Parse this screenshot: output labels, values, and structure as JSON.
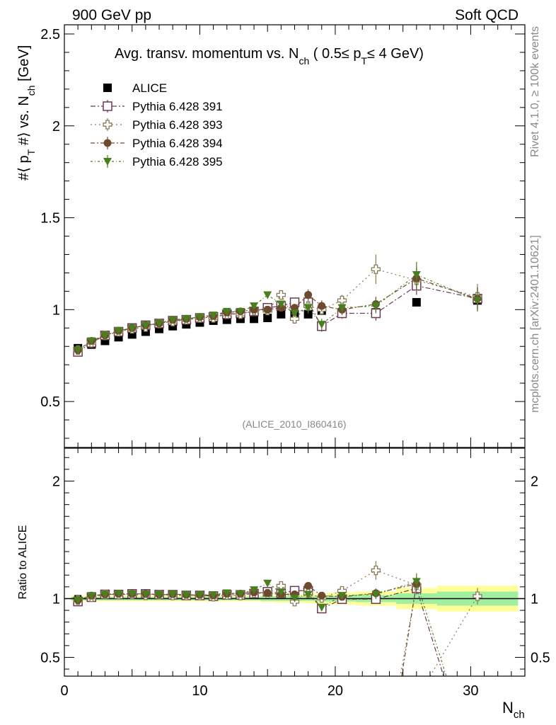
{
  "header": {
    "left": "900 GeV pp",
    "right": "Soft QCD"
  },
  "side_text": {
    "rivet": "Rivet 4.1.0, ≥ 100k events",
    "mcplots": "mcplots.cern.ch [arXiv:2401.10621]"
  },
  "watermark": "(ALICE_2010_I860416)",
  "colors": {
    "alice": "#000000",
    "p391": "#6b3a54",
    "p393": "#8a7a55",
    "p394": "#6e4a2e",
    "p395": "#4a7f1e",
    "band_inner": "#a0f0a0",
    "band_outer": "#ffff99"
  },
  "chart_data": [
    {
      "type": "scatter",
      "panel": "main",
      "title_parts": {
        "prefix": "Avg. transv. momentum vs. N",
        "sub1": "ch",
        "middle": " ( 0.5≤ p",
        "sub2": "T",
        "suffix": "≤ 4 GeV)"
      },
      "ylabel_parts": {
        "a": "#⟨ p",
        "sub_a": "T",
        "b": " #⟩ vs. N",
        "sub_b": "ch",
        "c": " [GeV]"
      },
      "xlim": [
        0,
        34
      ],
      "ylim": [
        0.25,
        2.55
      ],
      "yticks": [
        0.5,
        1,
        1.5,
        2,
        2.5
      ],
      "ytick_labels": [
        "0.5",
        "1",
        "1.5",
        "2",
        "2.5"
      ],
      "legend_position": "top-left",
      "series": [
        {
          "name": "ALICE",
          "key": "alice",
          "marker": "square-filled",
          "x": [
            1,
            2,
            3,
            4,
            5,
            6,
            7,
            8,
            9,
            10,
            11,
            12,
            13,
            14,
            15,
            16,
            17,
            18,
            19,
            20.5,
            23,
            26,
            30.5
          ],
          "y": [
            0.79,
            0.81,
            0.83,
            0.85,
            0.865,
            0.88,
            0.895,
            0.91,
            0.92,
            0.93,
            0.94,
            0.945,
            0.95,
            0.95,
            0.955,
            0.975,
            0.975,
            0.975,
            0.995,
            0.985,
            0.985,
            1.04,
            1.05
          ],
          "err": [
            0.01,
            0.01,
            0.01,
            0.01,
            0.01,
            0.01,
            0.01,
            0.01,
            0.01,
            0.01,
            0.01,
            0.01,
            0.01,
            0.01,
            0.01,
            0.01,
            0.01,
            0.01,
            0.015,
            0.015,
            0.015,
            0.015,
            0.02
          ]
        },
        {
          "name": "Pythia 6.428 391",
          "key": "p391",
          "marker": "square-open",
          "x": [
            1,
            2,
            3,
            4,
            5,
            6,
            7,
            8,
            9,
            10,
            11,
            12,
            13,
            14,
            15,
            16,
            17,
            18,
            19,
            20.5,
            23,
            26,
            30.5
          ],
          "y": [
            0.77,
            0.82,
            0.86,
            0.88,
            0.9,
            0.915,
            0.925,
            0.94,
            0.945,
            0.955,
            0.96,
            0.975,
            0.98,
            0.99,
            1.01,
            1.02,
            1.04,
            1.04,
            0.91,
            0.98,
            0.98,
            1.13,
            1.06
          ],
          "err": [
            0.01,
            0.01,
            0.01,
            0.01,
            0.01,
            0.01,
            0.01,
            0.01,
            0.01,
            0.01,
            0.01,
            0.01,
            0.01,
            0.01,
            0.02,
            0.02,
            0.02,
            0.03,
            0.03,
            0.03,
            0.04,
            0.05,
            0.06
          ]
        },
        {
          "name": "Pythia 6.428 393",
          "key": "p393",
          "marker": "cross-open",
          "x": [
            1,
            2,
            3,
            4,
            5,
            6,
            7,
            8,
            9,
            10,
            11,
            12,
            13,
            14,
            15,
            16,
            17,
            18,
            19,
            20.5,
            23,
            26,
            30.5
          ],
          "y": [
            0.78,
            0.82,
            0.86,
            0.88,
            0.895,
            0.905,
            0.925,
            0.935,
            0.945,
            0.955,
            0.955,
            0.975,
            0.975,
            0.995,
            0.995,
            1.08,
            0.95,
            1.02,
            1.0,
            1.05,
            1.22,
            1.16,
            1.07
          ],
          "err": [
            0.01,
            0.01,
            0.01,
            0.01,
            0.01,
            0.01,
            0.01,
            0.01,
            0.01,
            0.01,
            0.01,
            0.01,
            0.01,
            0.01,
            0.02,
            0.02,
            0.02,
            0.03,
            0.03,
            0.03,
            0.08,
            0.06,
            0.07
          ]
        },
        {
          "name": "Pythia 6.428 394",
          "key": "p394",
          "marker": "circle-filled",
          "x": [
            1,
            2,
            3,
            4,
            5,
            6,
            7,
            8,
            9,
            10,
            11,
            12,
            13,
            14,
            15,
            16,
            17,
            18,
            19,
            20.5,
            23,
            26,
            30.5
          ],
          "y": [
            0.78,
            0.83,
            0.86,
            0.885,
            0.9,
            0.915,
            0.925,
            0.945,
            0.95,
            0.96,
            0.965,
            0.985,
            0.99,
            1.0,
            1.0,
            1.01,
            1.01,
            1.08,
            1.02,
            1.0,
            1.03,
            1.17,
            1.06
          ],
          "err": [
            0.01,
            0.01,
            0.01,
            0.01,
            0.01,
            0.01,
            0.01,
            0.01,
            0.01,
            0.01,
            0.01,
            0.01,
            0.01,
            0.01,
            0.02,
            0.02,
            0.02,
            0.03,
            0.03,
            0.03,
            0.04,
            0.06,
            0.06
          ]
        },
        {
          "name": "Pythia 6.428 395",
          "key": "p395",
          "marker": "triangle-down-filled",
          "x": [
            1,
            2,
            3,
            4,
            5,
            6,
            7,
            8,
            9,
            10,
            11,
            12,
            13,
            14,
            15,
            16,
            17,
            18,
            19,
            20.5,
            23,
            26,
            30.5
          ],
          "y": [
            0.78,
            0.83,
            0.86,
            0.885,
            0.9,
            0.915,
            0.925,
            0.945,
            0.95,
            0.96,
            0.97,
            0.99,
            0.99,
            1.02,
            1.08,
            1.03,
            0.98,
            1.01,
            0.92,
            1.01,
            1.02,
            1.19,
            1.05
          ],
          "err": [
            0.01,
            0.01,
            0.01,
            0.01,
            0.01,
            0.01,
            0.01,
            0.01,
            0.01,
            0.01,
            0.01,
            0.01,
            0.01,
            0.01,
            0.02,
            0.02,
            0.02,
            0.03,
            0.03,
            0.03,
            0.04,
            0.07,
            0.06
          ]
        }
      ]
    },
    {
      "type": "scatter",
      "panel": "ratio",
      "ylabel": "Ratio to ALICE",
      "xlabel": "N",
      "xlabel_sub": "ch",
      "xlim": [
        0,
        34
      ],
      "ylim": [
        0.34,
        2.28
      ],
      "xticks": [
        0,
        10,
        20,
        30
      ],
      "xtick_labels": [
        "0",
        "10",
        "20",
        "30"
      ],
      "yticks": [
        0.5,
        1,
        2
      ],
      "ytick_labels": [
        "0.5",
        "1",
        "2"
      ],
      "band_bins": [
        [
          0.5,
          1.5
        ],
        [
          1.5,
          2.5
        ],
        [
          2.5,
          3.5
        ],
        [
          3.5,
          4.5
        ],
        [
          4.5,
          5.5
        ],
        [
          5.5,
          6.5
        ],
        [
          6.5,
          7.5
        ],
        [
          7.5,
          8.5
        ],
        [
          8.5,
          9.5
        ],
        [
          9.5,
          10.5
        ],
        [
          10.5,
          11.5
        ],
        [
          11.5,
          12.5
        ],
        [
          12.5,
          13.5
        ],
        [
          13.5,
          14.5
        ],
        [
          14.5,
          15.5
        ],
        [
          15.5,
          16.5
        ],
        [
          16.5,
          17.5
        ],
        [
          17.5,
          18.5
        ],
        [
          18.5,
          19.5
        ],
        [
          19.5,
          21.5
        ],
        [
          21.5,
          24.5
        ],
        [
          24.5,
          27.5
        ],
        [
          27.5,
          33.5
        ]
      ],
      "band_inner": [
        0.015,
        0.015,
        0.015,
        0.015,
        0.015,
        0.015,
        0.015,
        0.015,
        0.015,
        0.015,
        0.015,
        0.015,
        0.015,
        0.015,
        0.02,
        0.02,
        0.02,
        0.02,
        0.025,
        0.025,
        0.03,
        0.045,
        0.06
      ],
      "band_outer": [
        0.025,
        0.025,
        0.025,
        0.025,
        0.025,
        0.025,
        0.025,
        0.025,
        0.025,
        0.025,
        0.025,
        0.025,
        0.025,
        0.025,
        0.03,
        0.035,
        0.035,
        0.04,
        0.045,
        0.05,
        0.06,
        0.09,
        0.11
      ],
      "series": [
        {
          "name": "Pythia 6.428 391",
          "key": "p391",
          "marker": "square-open",
          "x": [
            1,
            2,
            3,
            4,
            5,
            6,
            7,
            8,
            9,
            10,
            11,
            12,
            13,
            14,
            15,
            16,
            17,
            18,
            19,
            20.5,
            23,
            26,
            30.5
          ],
          "y": [
            0.975,
            1.012,
            1.036,
            1.035,
            1.04,
            1.04,
            1.034,
            1.033,
            1.027,
            1.027,
            1.021,
            1.032,
            1.032,
            1.042,
            1.058,
            1.046,
            1.067,
            1.067,
            0.915,
            0.995,
            0.995,
            1.087,
            1.01
          ],
          "err": [
            0.01,
            0.01,
            0.01,
            0.01,
            0.01,
            0.01,
            0.01,
            0.01,
            0.01,
            0.01,
            0.01,
            0.01,
            0.01,
            0.01,
            0.02,
            0.02,
            0.02,
            0.03,
            0.03,
            0.03,
            0.04,
            0.05,
            0.06
          ],
          "tail_to": [
            28.0,
            0.34
          ]
        },
        {
          "name": "Pythia 6.428 393",
          "key": "p393",
          "marker": "cross-open",
          "x": [
            1,
            2,
            3,
            4,
            5,
            6,
            7,
            8,
            9,
            10,
            11,
            12,
            13,
            14,
            15,
            16,
            17,
            18,
            19,
            20.5,
            23,
            26,
            30.5
          ],
          "y": [
            0.987,
            1.012,
            1.036,
            1.035,
            1.035,
            1.028,
            1.034,
            1.027,
            1.027,
            1.027,
            1.016,
            1.032,
            1.026,
            1.047,
            1.042,
            1.108,
            0.974,
            1.046,
            1.005,
            1.066,
            1.24,
            1.115,
            1.02
          ],
          "err": [
            0.01,
            0.01,
            0.01,
            0.01,
            0.01,
            0.01,
            0.01,
            0.01,
            0.01,
            0.01,
            0.01,
            0.01,
            0.01,
            0.01,
            0.02,
            0.02,
            0.02,
            0.03,
            0.03,
            0.03,
            0.08,
            0.06,
            0.07
          ],
          "tail_to": [
            24.8,
            0.34
          ]
        },
        {
          "name": "Pythia 6.428 394",
          "key": "p394",
          "marker": "circle-filled",
          "x": [
            1,
            2,
            3,
            4,
            5,
            6,
            7,
            8,
            9,
            10,
            11,
            12,
            13,
            14,
            15,
            16,
            17,
            18,
            19,
            20.5,
            23,
            26,
            30.5
          ],
          "y": [
            0.987,
            1.025,
            1.036,
            1.041,
            1.04,
            1.04,
            1.034,
            1.038,
            1.033,
            1.032,
            1.027,
            1.042,
            1.042,
            1.053,
            1.047,
            1.036,
            1.036,
            1.108,
            1.025,
            1.015,
            1.046,
            1.125,
            1.01
          ],
          "err": [
            0.01,
            0.01,
            0.01,
            0.01,
            0.01,
            0.01,
            0.01,
            0.01,
            0.01,
            0.01,
            0.01,
            0.01,
            0.01,
            0.01,
            0.02,
            0.02,
            0.02,
            0.03,
            0.03,
            0.03,
            0.04,
            0.06,
            0.06
          ],
          "tail_to": [
            24.9,
            0.34
          ]
        },
        {
          "name": "Pythia 6.428 395",
          "key": "p395",
          "marker": "triangle-down-filled",
          "x": [
            1,
            2,
            3,
            4,
            5,
            6,
            7,
            8,
            9,
            10,
            11,
            12,
            13,
            14,
            15,
            16,
            17,
            18,
            19,
            20.5,
            23,
            26,
            30.5
          ],
          "y": [
            0.987,
            1.025,
            1.036,
            1.041,
            1.04,
            1.04,
            1.034,
            1.038,
            1.033,
            1.032,
            1.032,
            1.048,
            1.042,
            1.074,
            1.131,
            1.056,
            1.005,
            1.036,
            0.925,
            1.025,
            1.036,
            1.145,
            1.0
          ],
          "err": [
            0.01,
            0.01,
            0.01,
            0.01,
            0.01,
            0.01,
            0.01,
            0.01,
            0.01,
            0.01,
            0.01,
            0.01,
            0.01,
            0.01,
            0.02,
            0.02,
            0.02,
            0.03,
            0.03,
            0.03,
            0.04,
            0.07,
            0.06
          ],
          "tail_to": [
            28.2,
            0.34
          ]
        }
      ]
    }
  ]
}
